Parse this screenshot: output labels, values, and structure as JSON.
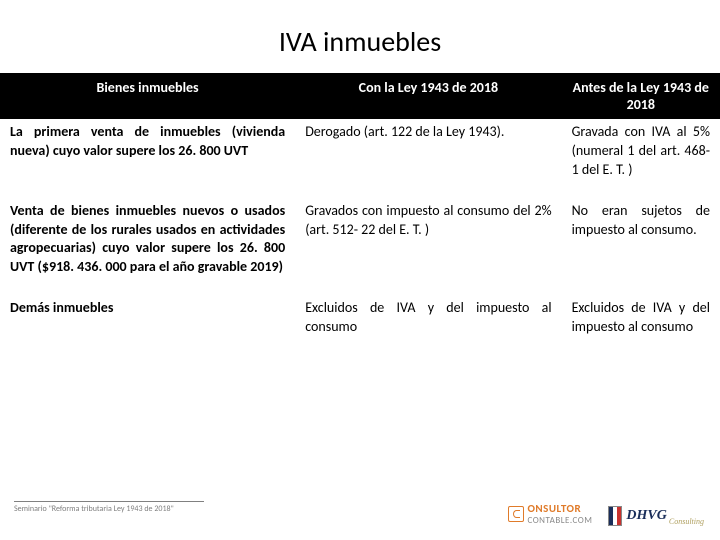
{
  "title": "IVA inmuebles",
  "table": {
    "headers": [
      "Bienes inmuebles",
      "Con la Ley 1943 de 2018",
      "Antes de la Ley 1943 de 2018"
    ],
    "rows": [
      {
        "col1": "La primera venta de inmuebles (vivienda nueva) cuyo valor supere los 26. 800 UVT",
        "col2": "Derogado (art. 122 de la Ley 1943).",
        "col3": "Gravada con IVA al 5% (numeral 1 del art. 468-1 del E. T. )"
      },
      {
        "col1": "Venta de bienes inmuebles nuevos o usados (diferente de los rurales usados en actividades agropecuarias) cuyo valor supere los 26. 800 UVT ($918. 436. 000 para el año gravable 2019)",
        "col2": "Gravados con impuesto al consumo del 2% (art. 512- 22 del E. T. )",
        "col3": "No eran sujetos de impuesto al consumo."
      },
      {
        "col1": "Demás inmuebles",
        "col2": "Excluidos de IVA y del impuesto al consumo",
        "col3": "Excluidos de IVA y del impuesto al consumo"
      }
    ]
  },
  "footer": "Seminario \"Reforma tributaria Ley 1943 de 2018\"",
  "logos": {
    "cc_text": "ONSULTOR",
    "cc_domain": "CONTABLE.COM",
    "dhvg": "DHVG",
    "dhvg_sub": "Consulting"
  },
  "colors": {
    "header_bg": "#000000",
    "header_fg": "#ffffff",
    "text": "#000000",
    "footer": "#808080",
    "orange": "#e07b2a",
    "navy": "#1a2e5a"
  }
}
